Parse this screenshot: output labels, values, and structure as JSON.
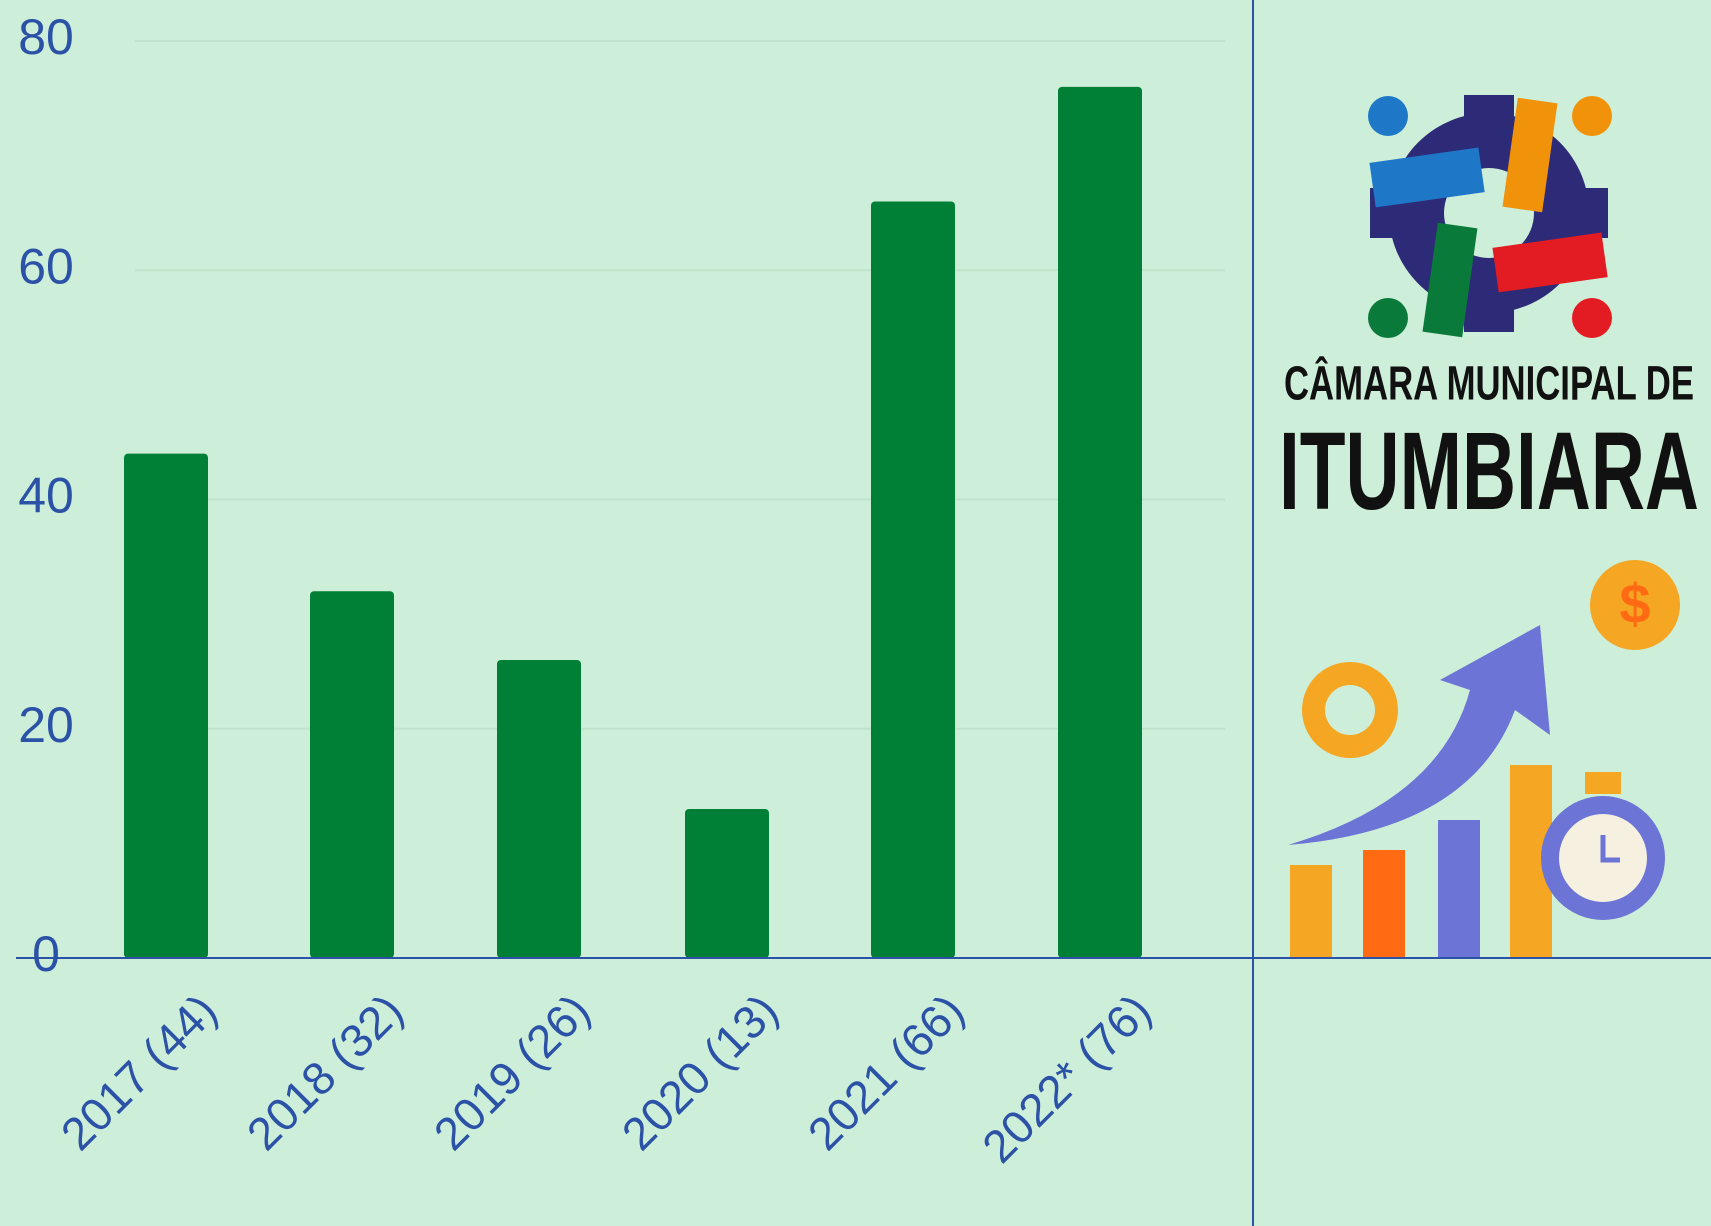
{
  "chart_data": {
    "type": "bar",
    "categories": [
      "2017 (44)",
      "2018 (32)",
      "2019 (26)",
      "2020 (13)",
      "2021 (66)",
      "2022* (76)"
    ],
    "values": [
      44,
      32,
      26,
      13,
      66,
      76
    ],
    "color": "#007f36",
    "ylim": [
      0,
      80
    ],
    "yticks": [
      0,
      20,
      40,
      60,
      80
    ],
    "grid": true
  },
  "logo": {
    "line1": "CÂMARA MUNICIPAL DE",
    "line2": "ITUMBIARA"
  }
}
